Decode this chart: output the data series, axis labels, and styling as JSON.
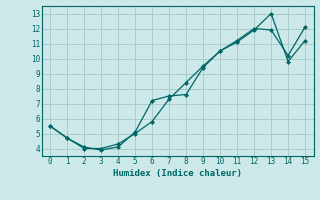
{
  "xlabel": "Humidex (Indice chaleur)",
  "xlim": [
    -0.5,
    15.5
  ],
  "ylim": [
    3.5,
    13.5
  ],
  "yticks": [
    4,
    5,
    6,
    7,
    8,
    9,
    10,
    11,
    12,
    13
  ],
  "xticks": [
    0,
    1,
    2,
    3,
    4,
    5,
    6,
    7,
    8,
    9,
    10,
    11,
    12,
    13,
    14,
    15
  ],
  "bg_color": "#cce8e8",
  "grid_color": "#aacccc",
  "line_color": "#006666",
  "line1_x": [
    0,
    1,
    2,
    3,
    4,
    5,
    6,
    7,
    8,
    9,
    10,
    11,
    12,
    13,
    14,
    15
  ],
  "line1_y": [
    5.5,
    4.7,
    4.0,
    4.0,
    4.3,
    5.0,
    5.8,
    7.3,
    8.4,
    9.5,
    10.5,
    11.2,
    12.0,
    11.9,
    10.2,
    12.1
  ],
  "line2_x": [
    0,
    1,
    2,
    3,
    4,
    5,
    6,
    7,
    8,
    9,
    10,
    11,
    12,
    13,
    14,
    15
  ],
  "line2_y": [
    5.5,
    4.7,
    4.1,
    3.9,
    4.1,
    5.1,
    7.2,
    7.5,
    7.6,
    9.4,
    10.5,
    11.1,
    11.9,
    13.0,
    9.8,
    11.2
  ]
}
